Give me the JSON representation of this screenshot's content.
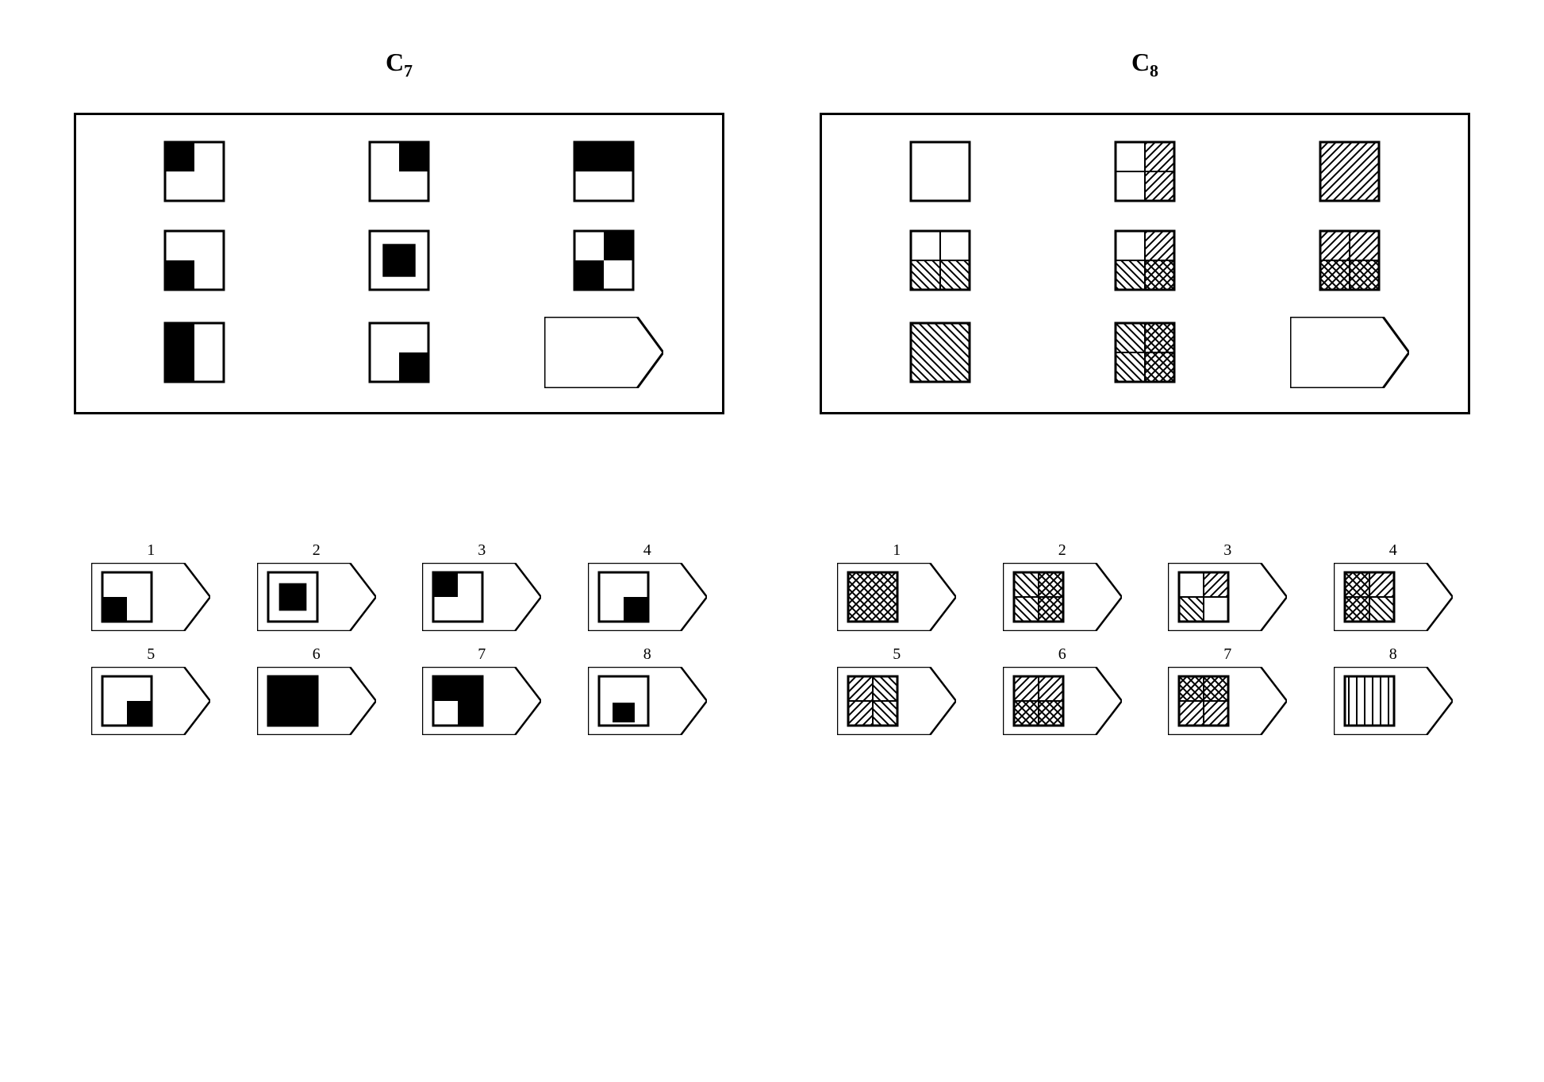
{
  "stroke": "#000000",
  "fill_black": "#000000",
  "fill_white": "#ffffff",
  "stroke_width": 3,
  "cell_size": 74,
  "arrow_w": 150,
  "arrow_h": 90,
  "answer_arrow_w": 150,
  "answer_arrow_h": 86,
  "answer_cell": 62,
  "puzzles": [
    {
      "id": "C7",
      "title_html": "C<sub>7</sub>",
      "matrix": [
        [
          {
            "type": "quad",
            "q": [
              1,
              0,
              0,
              0
            ]
          },
          {
            "type": "quad",
            "q": [
              0,
              1,
              0,
              0
            ]
          },
          {
            "type": "quad",
            "q": [
              1,
              1,
              0,
              0
            ]
          }
        ],
        [
          {
            "type": "quad",
            "q": [
              0,
              0,
              1,
              0
            ]
          },
          {
            "type": "center"
          },
          {
            "type": "quad",
            "q": [
              0,
              1,
              1,
              0
            ]
          }
        ],
        [
          {
            "type": "quad",
            "q": [
              1,
              0,
              1,
              0
            ]
          },
          {
            "type": "quad",
            "q": [
              0,
              0,
              0,
              1
            ]
          },
          {
            "type": "blank_arrow"
          }
        ]
      ],
      "answers": [
        {
          "n": "1",
          "type": "quad",
          "q": [
            0,
            0,
            1,
            0
          ]
        },
        {
          "n": "2",
          "type": "center"
        },
        {
          "n": "3",
          "type": "quad",
          "q": [
            1,
            0,
            0,
            0
          ]
        },
        {
          "n": "4",
          "type": "quad",
          "q": [
            0,
            0,
            0,
            1
          ]
        },
        {
          "n": "5",
          "type": "quad",
          "q": [
            0,
            0,
            0,
            1
          ]
        },
        {
          "n": "6",
          "type": "full"
        },
        {
          "n": "7",
          "type": "quad_white_on_black",
          "q": [
            0,
            0,
            1,
            0
          ]
        },
        {
          "n": "8",
          "type": "bottom_center"
        }
      ]
    },
    {
      "id": "C8",
      "title_html": "C<sub>8</sub>",
      "matrix": [
        [
          {
            "type": "hatch",
            "p": [
              "E",
              "E",
              "E",
              "E"
            ]
          },
          {
            "type": "hatch",
            "p": [
              "E",
              "D",
              "E",
              "D"
            ]
          },
          {
            "type": "hatch",
            "p": [
              "D",
              "D",
              "D",
              "D"
            ]
          }
        ],
        [
          {
            "type": "hatch",
            "p": [
              "E",
              "E",
              "B",
              "B"
            ]
          },
          {
            "type": "hatch",
            "p": [
              "E",
              "D",
              "B",
              "X"
            ]
          },
          {
            "type": "hatch",
            "p": [
              "D",
              "D",
              "X",
              "X"
            ]
          }
        ],
        [
          {
            "type": "hatch",
            "p": [
              "B",
              "B",
              "B",
              "B"
            ]
          },
          {
            "type": "hatch",
            "p": [
              "B",
              "X",
              "B",
              "X"
            ]
          },
          {
            "type": "blank_arrow"
          }
        ]
      ],
      "answers": [
        {
          "n": "1",
          "type": "hatch",
          "p": [
            "X",
            "X",
            "X",
            "X"
          ]
        },
        {
          "n": "2",
          "type": "hatch",
          "p": [
            "B",
            "X",
            "B",
            "X"
          ]
        },
        {
          "n": "3",
          "type": "hatch",
          "p": [
            "E",
            "D",
            "B",
            "E"
          ]
        },
        {
          "n": "4",
          "type": "hatch",
          "p": [
            "X",
            "D",
            "X",
            "B"
          ]
        },
        {
          "n": "5",
          "type": "hatch",
          "p": [
            "D",
            "B",
            "D",
            "B"
          ]
        },
        {
          "n": "6",
          "type": "hatch",
          "p": [
            "D",
            "D",
            "X",
            "X"
          ]
        },
        {
          "n": "7",
          "type": "hatch",
          "p": [
            "X",
            "X",
            "D",
            "D"
          ]
        },
        {
          "n": "8",
          "type": "hatch",
          "p": [
            "V",
            "V",
            "V",
            "V"
          ]
        }
      ]
    }
  ]
}
